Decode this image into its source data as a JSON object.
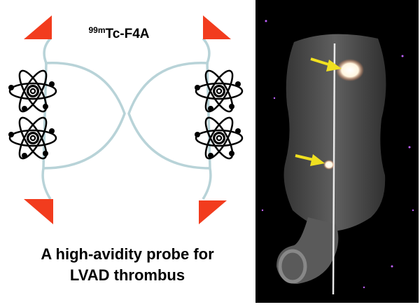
{
  "label": {
    "isotope": "99m",
    "name": "Tc-F4A"
  },
  "caption": [
    "A high-avidity probe for",
    "LVAD thrombus"
  ]
}
